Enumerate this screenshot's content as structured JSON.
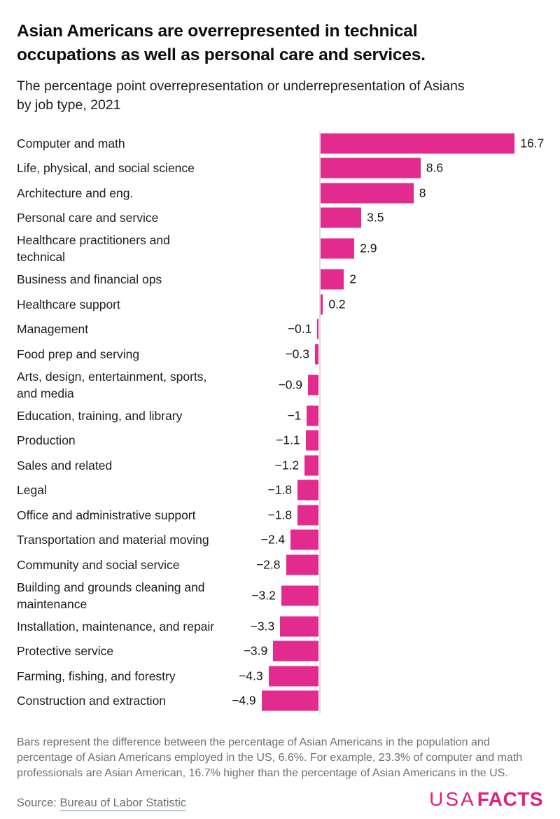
{
  "header": {
    "title_lines": [
      "Asian Americans are overrepresented in technical",
      "occupations as well as personal care and services."
    ],
    "subtitle_lines": [
      "The percentage point overrepresentation or underrepresentation of Asians",
      "by job type, 2021"
    ]
  },
  "chart_data": {
    "type": "bar",
    "orientation": "horizontal",
    "title": "The percentage point overrepresentation or underrepresentation of Asians by job type, 2021",
    "xlabel": "",
    "ylabel": "",
    "unit": "percentage points",
    "xlim": [
      -4.9,
      16.7
    ],
    "baseline": 0,
    "grid": false,
    "legend": "none",
    "bar_color": "#e32b8f",
    "axis_line_color": "#dcdcdc",
    "categories": [
      "Computer and math",
      "Life, physical, and social science",
      "Architecture and eng.",
      "Personal care and service",
      "Healthcare practitioners and technical",
      "Business and financial ops",
      "Healthcare support",
      "Management",
      "Food prep and serving",
      "Arts, design, entertainment, sports, and media",
      "Education, training, and library",
      "Production",
      "Sales and related",
      "Legal",
      "Office and administrative support",
      "Transportation and material moving",
      "Community and social service",
      "Building and grounds cleaning and maintenance",
      "Installation, maintenance, and repair",
      "Protective service",
      "Farming, fishing, and forestry",
      "Construction and extraction"
    ],
    "values": [
      16.7,
      8.6,
      8,
      3.5,
      2.9,
      2,
      0.2,
      -0.1,
      -0.3,
      -0.9,
      -1,
      -1.1,
      -1.2,
      -1.8,
      -1.8,
      -2.4,
      -2.8,
      -3.2,
      -3.3,
      -3.9,
      -4.3,
      -4.9
    ],
    "rows": [
      {
        "label": "Computer and math",
        "value": 16.7,
        "display": "16.7"
      },
      {
        "label": "Life, physical, and social science",
        "value": 8.6,
        "display": "8.6"
      },
      {
        "label": "Architecture and eng.",
        "value": 8,
        "display": "8"
      },
      {
        "label": "Personal care and service",
        "value": 3.5,
        "display": "3.5"
      },
      {
        "label": [
          "Healthcare practitioners and",
          "technical"
        ],
        "value": 2.9,
        "display": "2.9"
      },
      {
        "label": "Business and financial ops",
        "value": 2,
        "display": "2"
      },
      {
        "label": "Healthcare support",
        "value": 0.2,
        "display": "0.2"
      },
      {
        "label": "Management",
        "value": -0.1,
        "display": "−0.1"
      },
      {
        "label": "Food prep and serving",
        "value": -0.3,
        "display": "−0.3"
      },
      {
        "label": [
          "Arts, design, entertainment, sports,",
          "and media"
        ],
        "value": -0.9,
        "display": "−0.9"
      },
      {
        "label": "Education, training, and library",
        "value": -1,
        "display": "−1"
      },
      {
        "label": "Production",
        "value": -1.1,
        "display": "−1.1"
      },
      {
        "label": "Sales and related",
        "value": -1.2,
        "display": "−1.2"
      },
      {
        "label": "Legal",
        "value": -1.8,
        "display": "−1.8"
      },
      {
        "label": "Office and administrative support",
        "value": -1.8,
        "display": "−1.8"
      },
      {
        "label": "Transportation and material moving",
        "value": -2.4,
        "display": "−2.4"
      },
      {
        "label": "Community and social service",
        "value": -2.8,
        "display": "−2.8"
      },
      {
        "label": [
          "Building and grounds cleaning and",
          "maintenance"
        ],
        "value": -3.2,
        "display": "−3.2"
      },
      {
        "label": "Installation, maintenance, and repair",
        "value": -3.3,
        "display": "−3.3"
      },
      {
        "label": "Protective service",
        "value": -3.9,
        "display": "−3.9"
      },
      {
        "label": "Farming, fishing, and forestry",
        "value": -4.3,
        "display": "−4.3"
      },
      {
        "label": "Construction and extraction",
        "value": -4.9,
        "display": "−4.9"
      }
    ]
  },
  "footer": {
    "note_lines": [
      "Bars represent the difference between the percentage of Asian Americans in the population and",
      "percentage of Asian Americans employed in the US, 6.6%. For example, 23.3% of computer and math",
      "professionals are Asian American, 16.7% higher than the percentage of Asian Americans in the US."
    ],
    "source_prefix": "Source: ",
    "source_link": "Bureau of Labor Statistic",
    "logo": {
      "part1": "USA",
      "part2": "FACTS",
      "color": "#e0207e"
    }
  }
}
